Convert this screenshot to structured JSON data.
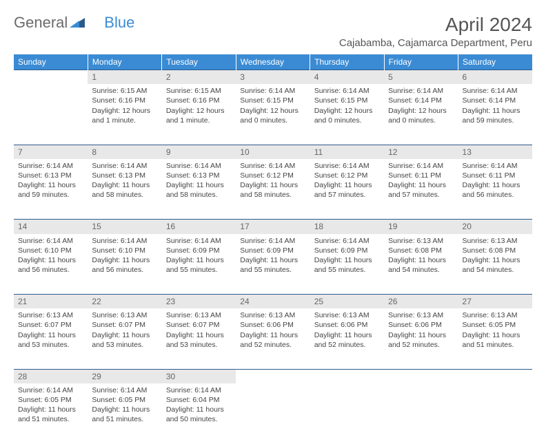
{
  "logo": {
    "part1": "General",
    "part2": "Blue"
  },
  "title": "April 2024",
  "location": "Cajabamba, Cajamarca Department, Peru",
  "colors": {
    "header_bg": "#3b8bd4",
    "header_text": "#ffffff",
    "daynum_bg": "#e8e8e8",
    "border": "#2a5a8a",
    "text": "#444444"
  },
  "days_of_week": [
    "Sunday",
    "Monday",
    "Tuesday",
    "Wednesday",
    "Thursday",
    "Friday",
    "Saturday"
  ],
  "weeks": [
    [
      {
        "n": "",
        "lines": []
      },
      {
        "n": "1",
        "lines": [
          "Sunrise: 6:15 AM",
          "Sunset: 6:16 PM",
          "Daylight: 12 hours",
          "and 1 minute."
        ]
      },
      {
        "n": "2",
        "lines": [
          "Sunrise: 6:15 AM",
          "Sunset: 6:16 PM",
          "Daylight: 12 hours",
          "and 1 minute."
        ]
      },
      {
        "n": "3",
        "lines": [
          "Sunrise: 6:14 AM",
          "Sunset: 6:15 PM",
          "Daylight: 12 hours",
          "and 0 minutes."
        ]
      },
      {
        "n": "4",
        "lines": [
          "Sunrise: 6:14 AM",
          "Sunset: 6:15 PM",
          "Daylight: 12 hours",
          "and 0 minutes."
        ]
      },
      {
        "n": "5",
        "lines": [
          "Sunrise: 6:14 AM",
          "Sunset: 6:14 PM",
          "Daylight: 12 hours",
          "and 0 minutes."
        ]
      },
      {
        "n": "6",
        "lines": [
          "Sunrise: 6:14 AM",
          "Sunset: 6:14 PM",
          "Daylight: 11 hours",
          "and 59 minutes."
        ]
      }
    ],
    [
      {
        "n": "7",
        "lines": [
          "Sunrise: 6:14 AM",
          "Sunset: 6:13 PM",
          "Daylight: 11 hours",
          "and 59 minutes."
        ]
      },
      {
        "n": "8",
        "lines": [
          "Sunrise: 6:14 AM",
          "Sunset: 6:13 PM",
          "Daylight: 11 hours",
          "and 58 minutes."
        ]
      },
      {
        "n": "9",
        "lines": [
          "Sunrise: 6:14 AM",
          "Sunset: 6:13 PM",
          "Daylight: 11 hours",
          "and 58 minutes."
        ]
      },
      {
        "n": "10",
        "lines": [
          "Sunrise: 6:14 AM",
          "Sunset: 6:12 PM",
          "Daylight: 11 hours",
          "and 58 minutes."
        ]
      },
      {
        "n": "11",
        "lines": [
          "Sunrise: 6:14 AM",
          "Sunset: 6:12 PM",
          "Daylight: 11 hours",
          "and 57 minutes."
        ]
      },
      {
        "n": "12",
        "lines": [
          "Sunrise: 6:14 AM",
          "Sunset: 6:11 PM",
          "Daylight: 11 hours",
          "and 57 minutes."
        ]
      },
      {
        "n": "13",
        "lines": [
          "Sunrise: 6:14 AM",
          "Sunset: 6:11 PM",
          "Daylight: 11 hours",
          "and 56 minutes."
        ]
      }
    ],
    [
      {
        "n": "14",
        "lines": [
          "Sunrise: 6:14 AM",
          "Sunset: 6:10 PM",
          "Daylight: 11 hours",
          "and 56 minutes."
        ]
      },
      {
        "n": "15",
        "lines": [
          "Sunrise: 6:14 AM",
          "Sunset: 6:10 PM",
          "Daylight: 11 hours",
          "and 56 minutes."
        ]
      },
      {
        "n": "16",
        "lines": [
          "Sunrise: 6:14 AM",
          "Sunset: 6:09 PM",
          "Daylight: 11 hours",
          "and 55 minutes."
        ]
      },
      {
        "n": "17",
        "lines": [
          "Sunrise: 6:14 AM",
          "Sunset: 6:09 PM",
          "Daylight: 11 hours",
          "and 55 minutes."
        ]
      },
      {
        "n": "18",
        "lines": [
          "Sunrise: 6:14 AM",
          "Sunset: 6:09 PM",
          "Daylight: 11 hours",
          "and 55 minutes."
        ]
      },
      {
        "n": "19",
        "lines": [
          "Sunrise: 6:13 AM",
          "Sunset: 6:08 PM",
          "Daylight: 11 hours",
          "and 54 minutes."
        ]
      },
      {
        "n": "20",
        "lines": [
          "Sunrise: 6:13 AM",
          "Sunset: 6:08 PM",
          "Daylight: 11 hours",
          "and 54 minutes."
        ]
      }
    ],
    [
      {
        "n": "21",
        "lines": [
          "Sunrise: 6:13 AM",
          "Sunset: 6:07 PM",
          "Daylight: 11 hours",
          "and 53 minutes."
        ]
      },
      {
        "n": "22",
        "lines": [
          "Sunrise: 6:13 AM",
          "Sunset: 6:07 PM",
          "Daylight: 11 hours",
          "and 53 minutes."
        ]
      },
      {
        "n": "23",
        "lines": [
          "Sunrise: 6:13 AM",
          "Sunset: 6:07 PM",
          "Daylight: 11 hours",
          "and 53 minutes."
        ]
      },
      {
        "n": "24",
        "lines": [
          "Sunrise: 6:13 AM",
          "Sunset: 6:06 PM",
          "Daylight: 11 hours",
          "and 52 minutes."
        ]
      },
      {
        "n": "25",
        "lines": [
          "Sunrise: 6:13 AM",
          "Sunset: 6:06 PM",
          "Daylight: 11 hours",
          "and 52 minutes."
        ]
      },
      {
        "n": "26",
        "lines": [
          "Sunrise: 6:13 AM",
          "Sunset: 6:06 PM",
          "Daylight: 11 hours",
          "and 52 minutes."
        ]
      },
      {
        "n": "27",
        "lines": [
          "Sunrise: 6:13 AM",
          "Sunset: 6:05 PM",
          "Daylight: 11 hours",
          "and 51 minutes."
        ]
      }
    ],
    [
      {
        "n": "28",
        "lines": [
          "Sunrise: 6:14 AM",
          "Sunset: 6:05 PM",
          "Daylight: 11 hours",
          "and 51 minutes."
        ]
      },
      {
        "n": "29",
        "lines": [
          "Sunrise: 6:14 AM",
          "Sunset: 6:05 PM",
          "Daylight: 11 hours",
          "and 51 minutes."
        ]
      },
      {
        "n": "30",
        "lines": [
          "Sunrise: 6:14 AM",
          "Sunset: 6:04 PM",
          "Daylight: 11 hours",
          "and 50 minutes."
        ]
      },
      {
        "n": "",
        "lines": []
      },
      {
        "n": "",
        "lines": []
      },
      {
        "n": "",
        "lines": []
      },
      {
        "n": "",
        "lines": []
      }
    ]
  ]
}
